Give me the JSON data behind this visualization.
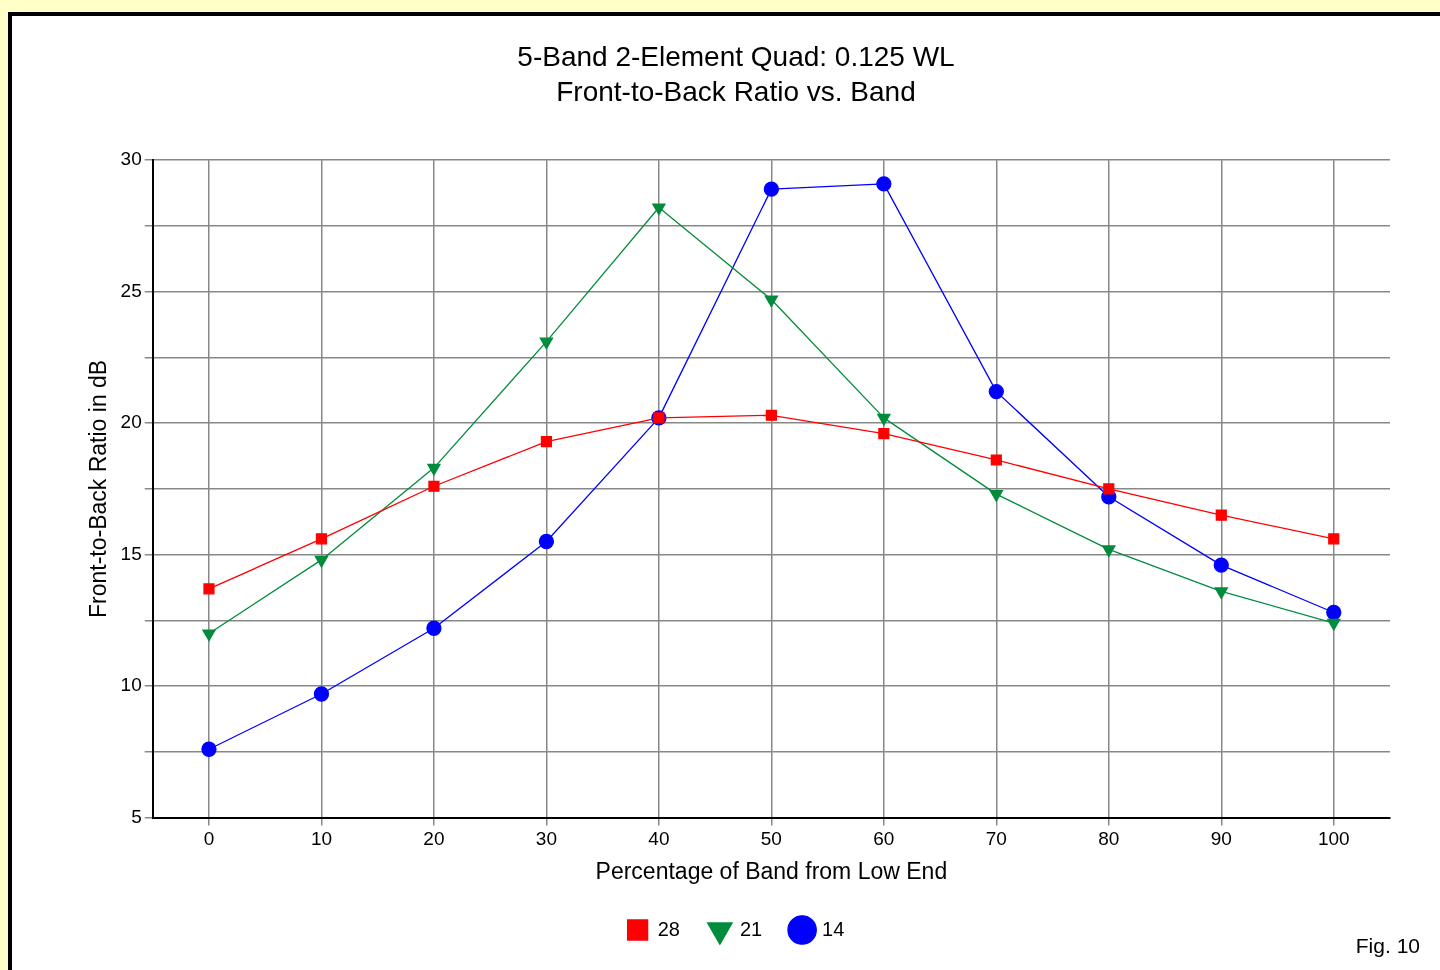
{
  "chart_data": {
    "type": "line",
    "title": "5-Band 2-Element Quad: 0.125 WL",
    "subtitle": "Front-to-Back Ratio vs. Band",
    "xlabel": "Percentage of Band from Low End",
    "ylabel": "Front-to-Back Ratio in dB",
    "x": [
      0,
      10,
      20,
      30,
      40,
      50,
      60,
      70,
      80,
      90,
      100
    ],
    "series": [
      {
        "name": "28",
        "color": "#ff0000",
        "marker": "square",
        "values": [
          13.7,
          15.6,
          17.6,
          19.3,
          20.2,
          20.3,
          19.6,
          18.6,
          17.5,
          16.5,
          15.6
        ]
      },
      {
        "name": "21",
        "color": "#008c3c",
        "marker": "triangle",
        "values": [
          12.0,
          14.8,
          18.3,
          23.1,
          28.2,
          24.7,
          20.2,
          17.3,
          15.2,
          13.6,
          12.4
        ]
      },
      {
        "name": "14",
        "color": "#0000ff",
        "marker": "circle",
        "values": [
          7.6,
          9.7,
          12.2,
          15.5,
          20.2,
          28.9,
          29.1,
          21.2,
          17.2,
          14.6,
          12.8
        ]
      }
    ],
    "xlim": [
      -5,
      105
    ],
    "xticks": [
      0,
      10,
      20,
      30,
      40,
      50,
      60,
      70,
      80,
      90,
      100
    ],
    "ylim": [
      5,
      30
    ],
    "yticks": [
      5,
      {
        "value": 7.5,
        "label": null
      },
      10,
      {
        "value": 12.5,
        "label": null
      },
      15,
      {
        "value": 17.5,
        "label": null
      },
      20,
      {
        "value": 22.5,
        "label": null
      },
      25,
      {
        "value": 27.5,
        "label": null
      },
      30
    ],
    "grid": true,
    "legend": "bottom",
    "line_style": "solid",
    "annotations": [
      "Fig. 10"
    ]
  }
}
